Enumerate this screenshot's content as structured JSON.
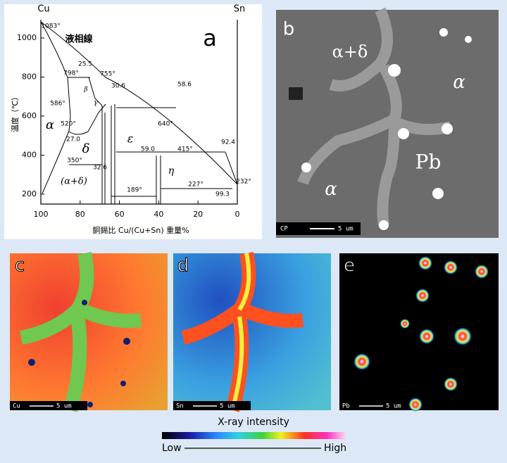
{
  "panel_a": {
    "label": "a",
    "top_left": "Cu",
    "top_right": "Sn",
    "y_axis_label": "温度（℃）",
    "x_axis_label": "銅錫比 Cu/(Cu+Sn) 重量%",
    "yticks": [
      200,
      400,
      600,
      800,
      1000
    ],
    "xticks": [
      100,
      80,
      60,
      40,
      20,
      0
    ],
    "annotations": [
      "1083°",
      "液相線",
      "25.5",
      "798°",
      "755°",
      "30.6",
      "58.6",
      "586°",
      "640°",
      "520°",
      "27.0",
      "415°",
      "92.4",
      "59.0",
      "350°",
      "32.6",
      "227°",
      "232°",
      "189°",
      "99.3"
    ],
    "phases": [
      "α",
      "β",
      "γ",
      "δ",
      "ε",
      "η",
      "(α+δ)"
    ]
  },
  "panel_b": {
    "label": "b",
    "annotations": [
      "α+δ",
      "α",
      "α",
      "Pb"
    ],
    "detector": "CP",
    "scale": "5 um"
  },
  "panel_c": {
    "label": "c",
    "element": "Cu",
    "scale": "5 um"
  },
  "panel_d": {
    "label": "d",
    "element": "Sn",
    "scale": "5 um"
  },
  "panel_e": {
    "label": "e",
    "element": "Pb",
    "scale": "5 um"
  },
  "colorbar": {
    "title": "X-ray intensity",
    "low": "Low",
    "high": "High"
  }
}
